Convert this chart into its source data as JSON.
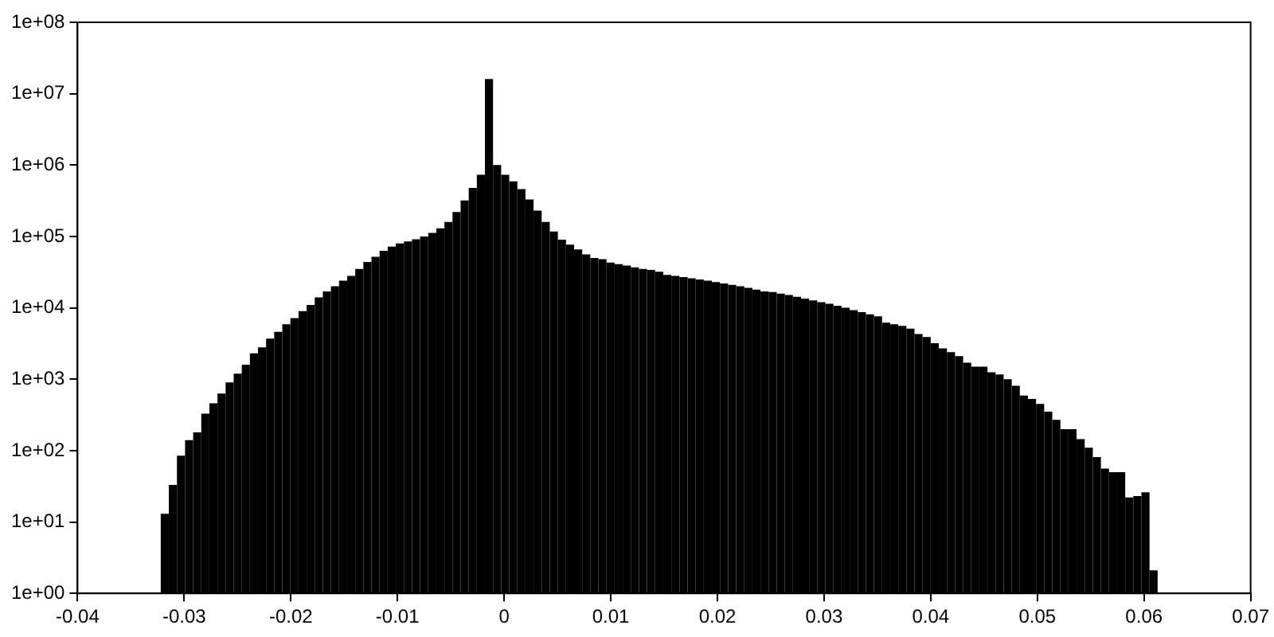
{
  "chart_data": {
    "type": "histogram",
    "color": "#000000",
    "log": true,
    "grid": false,
    "legend": false,
    "bins": [
      -0.0322,
      -0.03144,
      -0.03068,
      -0.02992,
      -0.02916,
      -0.0284,
      -0.02764,
      -0.02688,
      -0.02612,
      -0.02536,
      -0.0246,
      -0.02384,
      -0.02308,
      -0.02232,
      -0.02156,
      -0.0208,
      -0.02004,
      -0.01928,
      -0.01852,
      -0.01776,
      -0.017,
      -0.01624,
      -0.01548,
      -0.01472,
      -0.01396,
      -0.0132,
      -0.01244,
      -0.01168,
      -0.01092,
      -0.01016,
      -0.0094,
      -0.00864,
      -0.00788,
      -0.00712,
      -0.00636,
      -0.0056,
      -0.00484,
      -0.00408,
      -0.00332,
      -0.00256,
      -0.0018,
      -0.00104,
      -0.00028,
      0.00048,
      0.00124,
      0.002,
      0.00276,
      0.00352,
      0.00428,
      0.00504,
      0.0058,
      0.00656,
      0.00732,
      0.00808,
      0.00884,
      0.0096,
      0.01036,
      0.01112,
      0.01188,
      0.01264,
      0.0134,
      0.01416,
      0.01492,
      0.01568,
      0.01644,
      0.0172,
      0.01796,
      0.01872,
      0.01948,
      0.02024,
      0.021,
      0.02176,
      0.02252,
      0.02328,
      0.02404,
      0.0248,
      0.02556,
      0.02632,
      0.02708,
      0.02784,
      0.0286,
      0.02936,
      0.03012,
      0.03088,
      0.03164,
      0.0324,
      0.03316,
      0.03392,
      0.03468,
      0.03544,
      0.0362,
      0.03696,
      0.03772,
      0.03848,
      0.03924,
      0.04,
      0.04076,
      0.04152,
      0.04228,
      0.04304,
      0.0438,
      0.04456,
      0.04532,
      0.04608,
      0.04684,
      0.0476,
      0.04836,
      0.04912,
      0.04988,
      0.05064,
      0.0514,
      0.05216,
      0.05292,
      0.05368,
      0.05444,
      0.0552,
      0.05596,
      0.05672,
      0.05748,
      0.05824,
      0.059,
      0.05976,
      0.06052,
      0.06128
    ],
    "values": [
      13,
      33,
      85,
      140,
      180,
      330,
      460,
      630,
      900,
      1200,
      1600,
      2300,
      2800,
      3700,
      4600,
      5900,
      7200,
      9000,
      11000,
      14000,
      17000,
      20000,
      24000,
      28000,
      35000,
      44000,
      52000,
      63000,
      72000,
      80000,
      85000,
      91000,
      100000,
      112000,
      130000,
      160000,
      220000,
      320000,
      480000,
      730000,
      16000000,
      1000000,
      730000,
      590000,
      460000,
      330000,
      230000,
      160000,
      117000,
      90000,
      77000,
      66000,
      56000,
      50000,
      48000,
      43000,
      41000,
      39000,
      37000,
      35000,
      34000,
      32000,
      29000,
      28000,
      27000,
      26000,
      25000,
      24000,
      23000,
      22000,
      21000,
      20000,
      19000,
      18000,
      17000,
      16600,
      15800,
      15100,
      14300,
      13500,
      12700,
      12000,
      11400,
      10700,
      10000,
      9300,
      8700,
      8100,
      7600,
      6200,
      5900,
      5600,
      5100,
      4300,
      3900,
      3200,
      2700,
      2400,
      2100,
      1700,
      1500,
      1500,
      1250,
      1170,
      1000,
      810,
      590,
      530,
      450,
      350,
      270,
      200,
      200,
      145,
      110,
      81,
      56,
      50,
      50,
      22,
      23,
      26,
      2.1
    ],
    "xlim": [
      -0.04,
      0.07
    ],
    "xticks": [
      -0.04,
      -0.03,
      -0.02,
      -0.01,
      0,
      0.01,
      0.02,
      0.03,
      0.04,
      0.05,
      0.06,
      0.07
    ],
    "ylim": [
      1,
      100000000
    ],
    "yticks": [
      {
        "value": 1,
        "label": "1e+00"
      },
      {
        "value": 10,
        "label": "1e+01"
      },
      {
        "value": 100,
        "label": "1e+02"
      },
      {
        "value": 1000,
        "label": "1e+03"
      },
      {
        "value": 10000,
        "label": "1e+04"
      },
      {
        "value": 100000,
        "label": "1e+05"
      },
      {
        "value": 1000000,
        "label": "1e+06"
      },
      {
        "value": 10000000,
        "label": "1e+07"
      },
      {
        "value": 100000000,
        "label": "1e+08"
      }
    ]
  }
}
